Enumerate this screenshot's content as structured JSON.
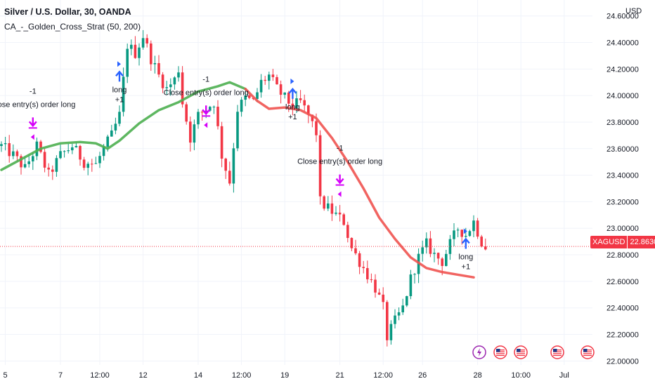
{
  "header": {
    "title": "Silver / U.S. Dollar, 30, OANDA",
    "indicator": "CA_-_Golden_Cross_Strat (50, 200)",
    "currency": "USD"
  },
  "price_badge": {
    "symbol": "XAGUSD",
    "price": "22.86300"
  },
  "colors": {
    "up_candle": "#089981",
    "down_candle": "#f23645",
    "ma_above": "#4caf50",
    "ma_below": "#f05350",
    "entry_arrow": "#2962ff",
    "exit_arrow": "#d500f9",
    "price_line": "#f23645",
    "grid": "#f0f3fa",
    "axis_text": "#131722"
  },
  "chart_data": {
    "type": "candlestick",
    "symbol": "XAGUSD",
    "x_ticks": [
      "5",
      "7",
      "12:00",
      "12",
      "14",
      "12:00",
      "19",
      "21",
      "12:00",
      "26",
      "28",
      "10:00",
      "Jul"
    ],
    "y_ticks": [
      "22.00000",
      "22.20000",
      "22.40000",
      "22.60000",
      "22.80000",
      "23.00000",
      "23.20000",
      "23.40000",
      "23.60000",
      "23.80000",
      "24.00000",
      "24.20000",
      "24.40000",
      "24.60000"
    ],
    "ylim": [
      21.97,
      24.72
    ],
    "last_price": 22.863,
    "price_path": [
      [
        0,
        23.62
      ],
      [
        3,
        23.55
      ],
      [
        6,
        23.45
      ],
      [
        9,
        23.62
      ],
      [
        12,
        23.4
      ],
      [
        15,
        23.55
      ],
      [
        18,
        23.62
      ],
      [
        21,
        23.5
      ],
      [
        24,
        23.48
      ],
      [
        26,
        23.6
      ],
      [
        28,
        23.7
      ],
      [
        30,
        23.85
      ],
      [
        32,
        24.38
      ],
      [
        34,
        24.32
      ],
      [
        36,
        24.45
      ],
      [
        38,
        24.28
      ],
      [
        40,
        24.15
      ],
      [
        42,
        24.05
      ],
      [
        44,
        24.12
      ],
      [
        45,
        24.2
      ],
      [
        46,
        23.95
      ],
      [
        48,
        23.68
      ],
      [
        50,
        23.85
      ],
      [
        52,
        23.9
      ],
      [
        54,
        23.95
      ],
      [
        56,
        23.55
      ],
      [
        58,
        23.35
      ],
      [
        60,
        23.9
      ],
      [
        62,
        23.98
      ],
      [
        64,
        23.95
      ],
      [
        66,
        24.1
      ],
      [
        68,
        24.15
      ],
      [
        70,
        24.05
      ],
      [
        72,
        23.98
      ],
      [
        74,
        23.92
      ],
      [
        76,
        23.95
      ],
      [
        78,
        23.85
      ],
      [
        80,
        23.72
      ],
      [
        81,
        23.2
      ],
      [
        83,
        23.15
      ],
      [
        85,
        23.1
      ],
      [
        87,
        23.05
      ],
      [
        89,
        22.85
      ],
      [
        91,
        22.75
      ],
      [
        93,
        22.65
      ],
      [
        95,
        22.55
      ],
      [
        97,
        22.4
      ],
      [
        98,
        22.18
      ],
      [
        100,
        22.3
      ],
      [
        102,
        22.4
      ],
      [
        104,
        22.62
      ],
      [
        106,
        22.78
      ],
      [
        108,
        22.88
      ],
      [
        110,
        22.8
      ],
      [
        112,
        22.75
      ],
      [
        114,
        22.88
      ],
      [
        116,
        23.0
      ],
      [
        118,
        22.95
      ],
      [
        120,
        23.05
      ],
      [
        122,
        22.9
      ],
      [
        123,
        22.86
      ]
    ],
    "moving_average": [
      [
        0,
        23.44
      ],
      [
        5,
        23.52
      ],
      [
        10,
        23.6
      ],
      [
        15,
        23.64
      ],
      [
        20,
        23.65
      ],
      [
        24,
        23.64
      ],
      [
        27,
        23.6
      ],
      [
        30,
        23.66
      ],
      [
        35,
        23.79
      ],
      [
        40,
        23.89
      ],
      [
        45,
        23.95
      ],
      [
        50,
        24.03
      ],
      [
        55,
        24.07
      ],
      [
        58,
        24.1
      ],
      [
        62,
        24.05
      ],
      [
        65,
        23.96
      ],
      [
        68,
        23.9
      ],
      [
        72,
        23.91
      ],
      [
        76,
        23.89
      ],
      [
        80,
        23.83
      ],
      [
        84,
        23.68
      ],
      [
        88,
        23.5
      ],
      [
        92,
        23.3
      ],
      [
        96,
        23.08
      ],
      [
        100,
        22.92
      ],
      [
        104,
        22.78
      ],
      [
        108,
        22.7
      ],
      [
        112,
        22.67
      ],
      [
        116,
        22.65
      ],
      [
        120,
        22.63
      ]
    ],
    "ma_cross_index": 62,
    "signals": [
      {
        "type": "close",
        "i": 8,
        "price": 23.74,
        "label": "Close entry(s) order long",
        "qty": "-1"
      },
      {
        "type": "entry",
        "i": 30,
        "price": 23.92,
        "label": "long",
        "qty": "+1"
      },
      {
        "type": "close",
        "i": 52,
        "price": 23.83,
        "label": "Close entry(s) order long",
        "qty": "-1"
      },
      {
        "type": "entry",
        "i": 74,
        "price": 23.79,
        "label": "long",
        "qty": "+1"
      },
      {
        "type": "close",
        "i": 86,
        "price": 23.31,
        "label": "Close entry(s) order long",
        "qty": "-1"
      },
      {
        "type": "entry",
        "i": 118,
        "price": 22.66,
        "label": "long",
        "qty": "+1"
      }
    ],
    "events": [
      "lightning-icon",
      "us-flag-icon",
      "us-flag-icon",
      "us-flag-icon",
      "us-flag-icon"
    ]
  }
}
